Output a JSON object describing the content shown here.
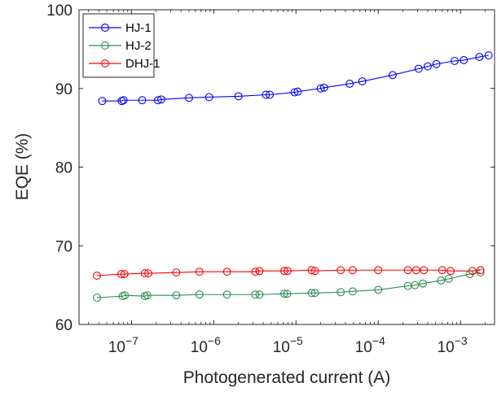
{
  "chart_data": {
    "type": "line",
    "xlabel": "Photogenerated current (A)",
    "ylabel": "EQE (%)",
    "x_scale": "log",
    "xlim": [
      2.3e-08,
      0.0026
    ],
    "ylim": [
      60,
      100
    ],
    "y_ticks": [
      "60",
      "70",
      "80",
      "90",
      "100"
    ],
    "x_ticks": [
      {
        "value": 1e-07,
        "base": "10",
        "exp": "−7"
      },
      {
        "value": 1e-06,
        "base": "10",
        "exp": "−6"
      },
      {
        "value": 1e-05,
        "base": "10",
        "exp": "−5"
      },
      {
        "value": 0.0001,
        "base": "10",
        "exp": "−4"
      },
      {
        "value": 0.001,
        "base": "10",
        "exp": "−3"
      }
    ],
    "legend_position": "top-left",
    "grid": false,
    "series": [
      {
        "name": "HJ-1",
        "color": "#0000ff",
        "marker": "circle",
        "x": [
          4.4e-08,
          7.6e-08,
          8e-08,
          1.35e-07,
          2.1e-07,
          2.3e-07,
          5e-07,
          8.8e-07,
          2e-06,
          4.3e-06,
          4.8e-06,
          9.6e-06,
          1.05e-05,
          2e-05,
          2.2e-05,
          4.5e-05,
          6.4e-05,
          0.00015,
          0.00031,
          0.0004,
          0.00051,
          0.00085,
          0.0011,
          0.0017,
          0.0022
        ],
        "y": [
          88.4,
          88.4,
          88.5,
          88.5,
          88.5,
          88.6,
          88.8,
          88.9,
          89.0,
          89.2,
          89.2,
          89.5,
          89.6,
          90.0,
          90.1,
          90.6,
          90.9,
          91.7,
          92.5,
          92.8,
          93.1,
          93.5,
          93.6,
          94.0,
          94.2
        ]
      },
      {
        "name": "HJ-2",
        "color": "#2e8b57",
        "marker": "circle",
        "x": [
          3.8e-08,
          7.8e-08,
          8.3e-08,
          1.45e-07,
          1.55e-07,
          3.5e-07,
          6.7e-07,
          1.45e-06,
          3.2e-06,
          3.6e-06,
          7.2e-06,
          7.8e-06,
          1.55e-05,
          1.7e-05,
          3.5e-05,
          4.9e-05,
          0.0001,
          0.00023,
          0.00028,
          0.00035,
          0.00058,
          0.00072,
          0.0013,
          0.00175
        ],
        "y": [
          63.4,
          63.6,
          63.7,
          63.6,
          63.7,
          63.7,
          63.8,
          63.8,
          63.8,
          63.8,
          63.9,
          63.9,
          64.0,
          64.0,
          64.1,
          64.2,
          64.4,
          64.9,
          65.0,
          65.2,
          65.6,
          65.8,
          66.4,
          66.6
        ]
      },
      {
        "name": "DHJ-1",
        "color": "#ff0000",
        "marker": "circle",
        "x": [
          3.8e-08,
          7.5e-08,
          8.2e-08,
          1.45e-07,
          1.6e-07,
          3.5e-07,
          6.7e-07,
          1.45e-06,
          3.2e-06,
          3.6e-06,
          7.2e-06,
          7.9e-06,
          1.55e-05,
          1.7e-05,
          3.5e-05,
          4.9e-05,
          0.0001,
          0.00023,
          0.00029,
          0.00036,
          0.0006,
          0.00076,
          0.0014,
          0.00175
        ],
        "y": [
          66.2,
          66.4,
          66.4,
          66.5,
          66.5,
          66.6,
          66.7,
          66.7,
          66.7,
          66.8,
          66.8,
          66.8,
          66.9,
          66.8,
          66.9,
          66.9,
          66.9,
          66.9,
          66.9,
          66.9,
          66.9,
          66.8,
          66.8,
          66.9
        ]
      }
    ]
  }
}
